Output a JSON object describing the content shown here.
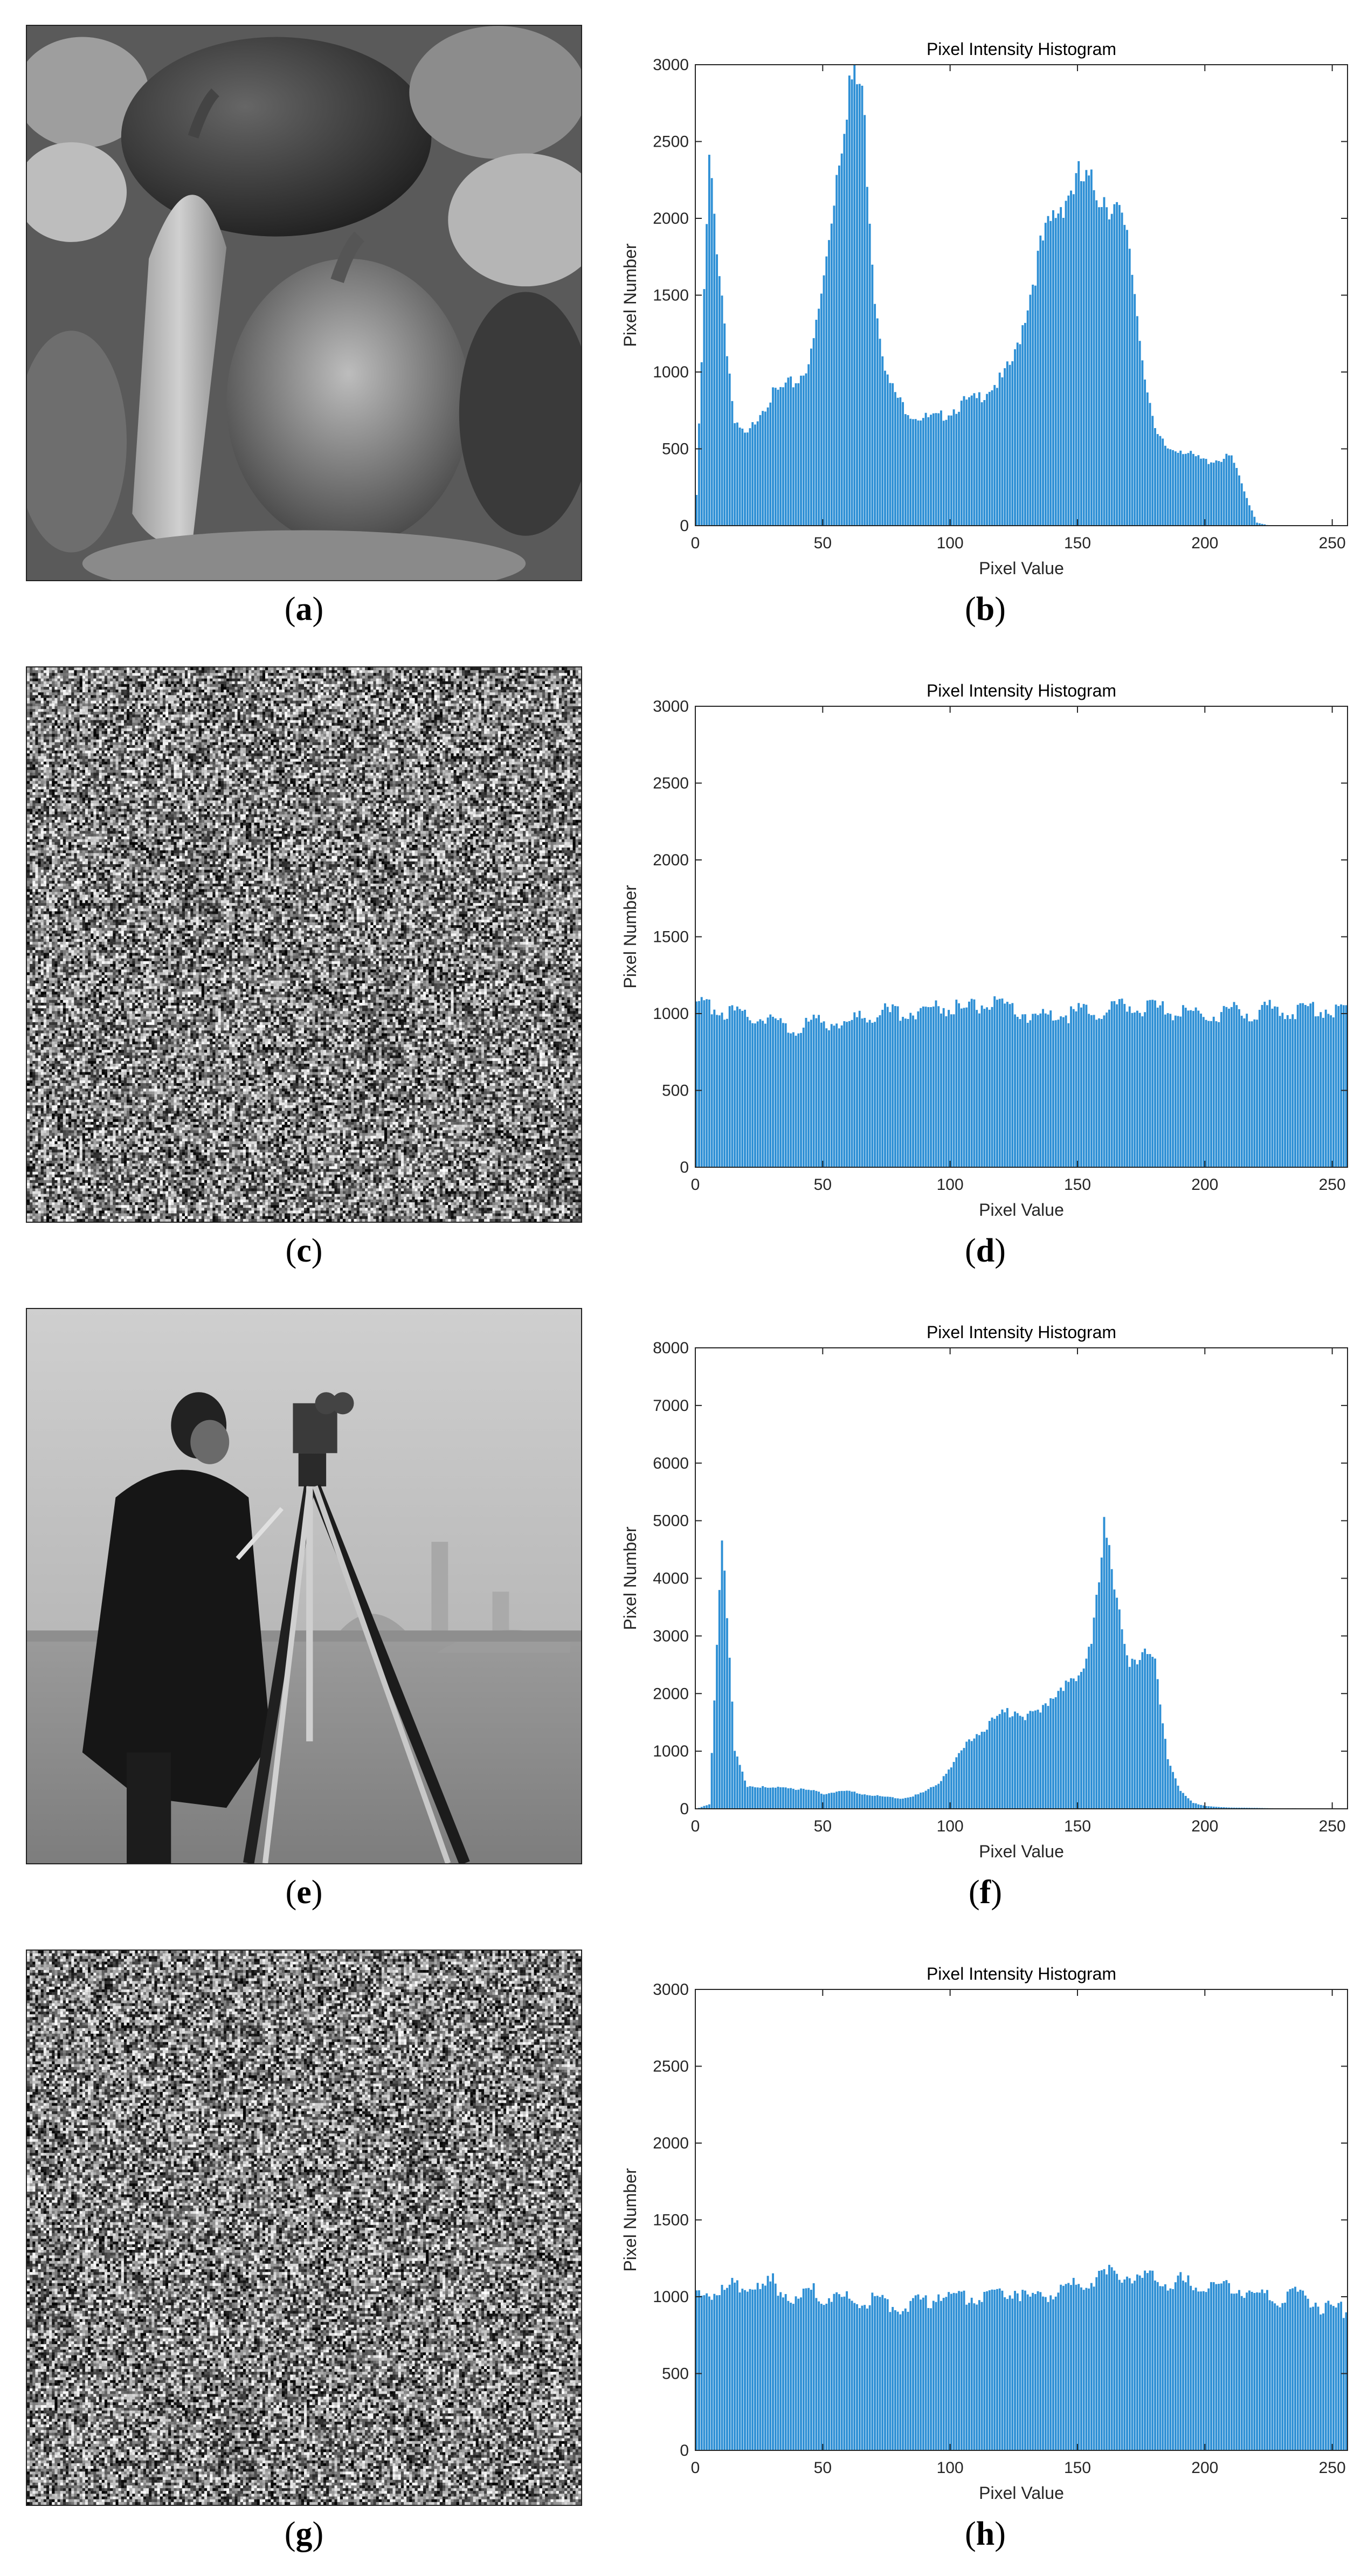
{
  "panels": {
    "a": "a",
    "b": "b",
    "c": "c",
    "d": "d",
    "e": "e",
    "f": "f",
    "g": "g",
    "h": "h"
  },
  "photos": {
    "peppers": "grayscale peppers test image",
    "encrypted_peppers": "noise-like encrypted image",
    "cameraman": "grayscale cameraman test image",
    "encrypted_cameraman": "noise-like encrypted image"
  },
  "colors": {
    "bar": "#2d8fd5",
    "axis": "#262626",
    "grid_text": "#262626"
  },
  "chart_data": [
    {
      "type": "bar",
      "panel": "b",
      "title": "Pixel Intensity Histogram",
      "xlabel": "Pixel Value",
      "ylabel": "Pixel Number",
      "xlim": [
        0,
        256
      ],
      "ylim": [
        0,
        3000
      ],
      "xticks": [
        0,
        50,
        100,
        150,
        200,
        250
      ],
      "yticks": [
        0,
        500,
        1000,
        1500,
        2000,
        2500,
        3000
      ],
      "x": [
        0,
        5,
        10,
        15,
        20,
        25,
        30,
        35,
        40,
        45,
        50,
        55,
        60,
        65,
        70,
        75,
        80,
        85,
        90,
        95,
        100,
        105,
        110,
        115,
        120,
        125,
        130,
        135,
        140,
        145,
        150,
        155,
        160,
        165,
        170,
        175,
        180,
        185,
        190,
        195,
        200,
        205,
        210,
        215,
        220,
        225,
        230,
        235,
        240,
        245,
        250,
        255
      ],
      "values": [
        200,
        2350,
        1500,
        650,
        580,
        750,
        850,
        900,
        950,
        1100,
        1600,
        2300,
        2900,
        2850,
        1500,
        950,
        800,
        720,
        700,
        700,
        750,
        800,
        820,
        900,
        950,
        1100,
        1450,
        1800,
        2000,
        2150,
        2250,
        2200,
        2150,
        2050,
        1800,
        1100,
        600,
        500,
        500,
        450,
        420,
        430,
        450,
        220,
        20,
        0,
        0,
        0,
        0,
        0,
        0,
        0
      ]
    },
    {
      "type": "bar",
      "panel": "d",
      "title": "Pixel Intensity Histogram",
      "xlabel": "Pixel Value",
      "ylabel": "Pixel Number",
      "xlim": [
        0,
        256
      ],
      "ylim": [
        0,
        3000
      ],
      "xticks": [
        0,
        50,
        100,
        150,
        200,
        250
      ],
      "yticks": [
        0,
        500,
        1000,
        1500,
        2000,
        2500,
        3000
      ],
      "x": [
        0,
        5,
        10,
        15,
        20,
        25,
        30,
        35,
        40,
        45,
        50,
        55,
        60,
        65,
        70,
        75,
        80,
        85,
        90,
        95,
        100,
        105,
        110,
        115,
        120,
        125,
        130,
        135,
        140,
        145,
        150,
        155,
        160,
        165,
        170,
        175,
        180,
        185,
        190,
        195,
        200,
        205,
        210,
        215,
        220,
        225,
        230,
        235,
        240,
        245,
        250,
        255
      ],
      "values": [
        1040,
        1060,
        1020,
        1000,
        970,
        990,
        960,
        910,
        900,
        950,
        930,
        960,
        940,
        990,
        1000,
        1010,
        1000,
        1020,
        1030,
        1050,
        1040,
        1030,
        1050,
        1060,
        1040,
        1020,
        990,
        980,
        1000,
        990,
        1010,
        1020,
        1000,
        1040,
        1050,
        1040,
        1030,
        1020,
        1000,
        1010,
        990,
        1000,
        1020,
        1010,
        1000,
        1030,
        1020,
        1010,
        1040,
        1030,
        1020,
        1050
      ]
    },
    {
      "type": "bar",
      "panel": "f",
      "title": "Pixel Intensity Histogram",
      "xlabel": "Pixel Value",
      "ylabel": "Pixel Number",
      "xlim": [
        0,
        256
      ],
      "ylim": [
        0,
        8000
      ],
      "xticks": [
        0,
        50,
        100,
        150,
        200,
        250
      ],
      "yticks": [
        0,
        1000,
        2000,
        3000,
        4000,
        5000,
        6000,
        7000,
        8000
      ],
      "x": [
        0,
        5,
        10,
        15,
        20,
        25,
        30,
        35,
        40,
        45,
        50,
        55,
        60,
        65,
        70,
        75,
        80,
        85,
        90,
        95,
        100,
        105,
        110,
        115,
        120,
        125,
        130,
        135,
        140,
        145,
        150,
        155,
        160,
        165,
        170,
        175,
        180,
        185,
        190,
        195,
        200,
        205,
        210,
        215,
        220,
        225,
        230,
        235,
        240,
        245,
        250,
        255
      ],
      "values": [
        0,
        80,
        4800,
        1000,
        400,
        380,
        350,
        380,
        340,
        320,
        260,
        300,
        300,
        260,
        230,
        200,
        180,
        220,
        300,
        450,
        750,
        1050,
        1300,
        1500,
        1650,
        1700,
        1600,
        1650,
        2000,
        2200,
        2200,
        3000,
        4900,
        3500,
        2600,
        2700,
        2500,
        900,
        300,
        100,
        50,
        30,
        20,
        20,
        15,
        10,
        10,
        10,
        5,
        5,
        0,
        0
      ]
    },
    {
      "type": "bar",
      "panel": "h",
      "title": "Pixel Intensity Histogram",
      "xlabel": "Pixel Value",
      "ylabel": "Pixel Number",
      "xlim": [
        0,
        256
      ],
      "ylim": [
        0,
        3000
      ],
      "xticks": [
        0,
        50,
        100,
        150,
        200,
        250
      ],
      "yticks": [
        0,
        500,
        1000,
        1500,
        2000,
        2500,
        3000
      ],
      "x": [
        0,
        5,
        10,
        15,
        20,
        25,
        30,
        35,
        40,
        45,
        50,
        55,
        60,
        65,
        70,
        75,
        80,
        85,
        90,
        95,
        100,
        105,
        110,
        115,
        120,
        125,
        130,
        135,
        140,
        145,
        150,
        155,
        160,
        165,
        170,
        175,
        180,
        185,
        190,
        195,
        200,
        205,
        210,
        215,
        220,
        225,
        230,
        235,
        240,
        245,
        250,
        255
      ],
      "values": [
        1000,
        1040,
        1020,
        1080,
        1060,
        1040,
        1100,
        1020,
        980,
        1040,
        1000,
        990,
        980,
        960,
        1000,
        960,
        920,
        980,
        960,
        1020,
        990,
        1000,
        1000,
        1040,
        1020,
        1040,
        980,
        1000,
        1020,
        1040,
        1080,
        1120,
        1140,
        1160,
        1140,
        1100,
        1120,
        1080,
        1100,
        1060,
        1080,
        1080,
        1060,
        1040,
        1000,
        1020,
        980,
        1020,
        1000,
        940,
        920,
        910
      ]
    }
  ]
}
